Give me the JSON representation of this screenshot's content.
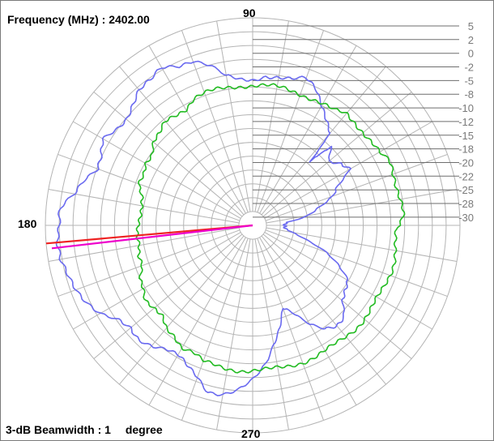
{
  "header": {
    "frequency_label": "Frequency (MHz) :",
    "frequency_value": "2402.00"
  },
  "footer": {
    "beamwidth_label": "3-dB Beamwidth :",
    "beamwidth_value": "1",
    "beamwidth_unit": "degree"
  },
  "chart_data": {
    "type": "polar",
    "angle_labels": [
      "90",
      "180",
      "270"
    ],
    "angle_step_deg": 10,
    "radial_ticks": [
      5,
      2,
      0,
      -2,
      -5,
      -8,
      -10,
      -12,
      -15,
      -18,
      -20,
      -22,
      -25,
      -28,
      -30
    ],
    "rlim": [
      -33,
      7
    ],
    "grid": true,
    "colors": {
      "grid": "#b4b4b4",
      "series_1": "#6a6af0",
      "series_2": "#22bb22",
      "beam_main": "#ee2222",
      "beam_secondary": "#ee00cc"
    },
    "series": [
      {
        "color": "#6a6af0",
        "points": [
          [
            0,
            -27
          ],
          [
            5,
            -26
          ],
          [
            10,
            -22
          ],
          [
            15,
            -20
          ],
          [
            20,
            -17
          ],
          [
            25,
            -15
          ],
          [
            30,
            -11
          ],
          [
            35,
            -12
          ],
          [
            40,
            -14
          ],
          [
            45,
            -12
          ],
          [
            48,
            -16
          ],
          [
            50,
            -10
          ],
          [
            55,
            -8
          ],
          [
            60,
            -6
          ],
          [
            65,
            -4
          ],
          [
            70,
            -3
          ],
          [
            75,
            -4
          ],
          [
            80,
            -4
          ],
          [
            85,
            -4
          ],
          [
            90,
            -5
          ],
          [
            95,
            -5
          ],
          [
            100,
            -4
          ],
          [
            105,
            -1
          ],
          [
            110,
            1
          ],
          [
            115,
            1
          ],
          [
            120,
            2
          ],
          [
            125,
            1
          ],
          [
            130,
            1
          ],
          [
            135,
            0
          ],
          [
            140,
            -1
          ],
          [
            145,
            -1
          ],
          [
            150,
            0
          ],
          [
            155,
            -1
          ],
          [
            160,
            -1
          ],
          [
            165,
            1
          ],
          [
            170,
            2
          ],
          [
            175,
            4
          ],
          [
            180,
            4
          ],
          [
            185,
            5
          ],
          [
            190,
            5
          ],
          [
            195,
            4
          ],
          [
            200,
            3
          ],
          [
            205,
            2
          ],
          [
            210,
            1
          ],
          [
            215,
            -1
          ],
          [
            220,
            -2
          ],
          [
            225,
            -2
          ],
          [
            230,
            -3
          ],
          [
            235,
            -4
          ],
          [
            240,
            -4
          ],
          [
            245,
            -3
          ],
          [
            250,
            -2
          ],
          [
            255,
            0
          ],
          [
            260,
            0
          ],
          [
            265,
            -1
          ],
          [
            270,
            -3
          ],
          [
            275,
            -6
          ],
          [
            280,
            -10
          ],
          [
            285,
            -13
          ],
          [
            290,
            -16
          ],
          [
            295,
            -14
          ],
          [
            300,
            -11
          ],
          [
            305,
            -9
          ],
          [
            310,
            -8
          ],
          [
            315,
            -8
          ],
          [
            320,
            -10
          ],
          [
            325,
            -11
          ],
          [
            330,
            -12
          ],
          [
            335,
            -15
          ],
          [
            340,
            -18
          ],
          [
            345,
            -22
          ],
          [
            350,
            -25
          ],
          [
            355,
            -27
          ]
        ]
      },
      {
        "color": "#22bb22",
        "points": [
          [
            0,
            -5
          ],
          [
            5,
            -4
          ],
          [
            10,
            -4
          ],
          [
            15,
            -4
          ],
          [
            20,
            -4
          ],
          [
            25,
            -4
          ],
          [
            30,
            -5
          ],
          [
            35,
            -5
          ],
          [
            40,
            -5
          ],
          [
            45,
            -5
          ],
          [
            50,
            -5
          ],
          [
            55,
            -6
          ],
          [
            60,
            -6
          ],
          [
            65,
            -6
          ],
          [
            70,
            -6
          ],
          [
            75,
            -6
          ],
          [
            80,
            -6
          ],
          [
            85,
            -6
          ],
          [
            90,
            -6
          ],
          [
            95,
            -6
          ],
          [
            100,
            -6
          ],
          [
            105,
            -6
          ],
          [
            110,
            -6
          ],
          [
            115,
            -6
          ],
          [
            120,
            -7
          ],
          [
            125,
            -7
          ],
          [
            130,
            -7
          ],
          [
            135,
            -8
          ],
          [
            140,
            -8
          ],
          [
            145,
            -9
          ],
          [
            150,
            -9
          ],
          [
            155,
            -10
          ],
          [
            160,
            -10
          ],
          [
            165,
            -11
          ],
          [
            170,
            -11
          ],
          [
            175,
            -11
          ],
          [
            180,
            -11
          ],
          [
            185,
            -11
          ],
          [
            190,
            -11
          ],
          [
            195,
            -10
          ],
          [
            200,
            -10
          ],
          [
            205,
            -9
          ],
          [
            210,
            -9
          ],
          [
            215,
            -8
          ],
          [
            220,
            -8
          ],
          [
            225,
            -8
          ],
          [
            230,
            -7
          ],
          [
            235,
            -7
          ],
          [
            240,
            -6
          ],
          [
            245,
            -6
          ],
          [
            250,
            -5
          ],
          [
            255,
            -5
          ],
          [
            260,
            -5
          ],
          [
            265,
            -5
          ],
          [
            270,
            -5
          ],
          [
            275,
            -5
          ],
          [
            280,
            -5
          ],
          [
            285,
            -5
          ],
          [
            290,
            -5
          ],
          [
            295,
            -5
          ],
          [
            300,
            -5
          ],
          [
            305,
            -5
          ],
          [
            310,
            -5
          ],
          [
            315,
            -5
          ],
          [
            320,
            -5
          ],
          [
            325,
            -5
          ],
          [
            330,
            -5
          ],
          [
            335,
            -5
          ],
          [
            340,
            -5
          ],
          [
            345,
            -5
          ],
          [
            350,
            -5
          ],
          [
            355,
            -5
          ]
        ]
      }
    ],
    "beam_lines": [
      {
        "color": "#ee2222",
        "angle_deg": 185,
        "value": 7
      },
      {
        "color": "#ee00cc",
        "angle_deg": 186.5,
        "value": 6
      }
    ]
  }
}
